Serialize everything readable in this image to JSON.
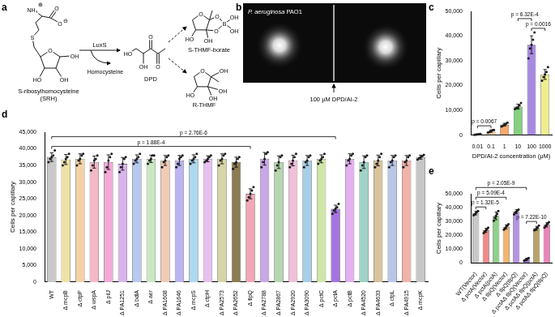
{
  "panel_a": {
    "panel_label": "a",
    "srh": {
      "name": [
        "S-ribosylhomocysteine",
        "(SRH)"
      ],
      "atoms": [
        "O",
        "S",
        "NH₃",
        "⊕",
        "O",
        "O",
        "⊖",
        "OH",
        "HO",
        "OH"
      ]
    },
    "enzyme": "LuxS",
    "byproduct": "Homocysteine",
    "dpd": {
      "name": "DPD",
      "atoms": [
        "HO",
        "OH",
        "O",
        "O"
      ]
    },
    "s_thmf_borate": {
      "name": "S-THMF-borate",
      "atoms": [
        "O",
        "O",
        "B",
        "O",
        "OH",
        "OH",
        "OH",
        "HO"
      ]
    },
    "r_thmf": {
      "name": "R-THMF",
      "atoms": [
        "O",
        "OH",
        "OH",
        "OH",
        "HO"
      ]
    }
  },
  "panel_b": {
    "panel_label": "b",
    "organism": "P. aeruginosa PAO1",
    "annotation": "100 μM DPD/AI-2"
  },
  "chart_data": [
    {
      "panel_label": "c",
      "type": "bar",
      "categories": [
        "0.01",
        "0.1",
        "1",
        "10",
        "100",
        "1000"
      ],
      "values": [
        300,
        1600,
        4200,
        11500,
        36500,
        24500
      ],
      "errors": [
        150,
        450,
        550,
        1000,
        3600,
        2000
      ],
      "points": [
        [
          150,
          200,
          300,
          400,
          450
        ],
        [
          1000,
          1300,
          1600,
          2000,
          2100
        ],
        [
          3500,
          3800,
          4200,
          4500,
          5000
        ],
        [
          10500,
          11000,
          11200,
          12000,
          13000
        ],
        [
          31000,
          35000,
          36500,
          38500,
          41500
        ],
        [
          22000,
          23500,
          24500,
          25500,
          27500
        ]
      ],
      "colors": [
        "#f2f2f2",
        "#f6c89a",
        "#f7a86a",
        "#86d07f",
        "#a68ae0",
        "#eeee90"
      ],
      "x_label": "DPD/AI-2 concentration (μM)",
      "y_label": "Cells per capillary",
      "ylim": [
        0,
        50000
      ],
      "yticks": [
        0,
        {
          "value": 10000,
          "label": "10,000"
        },
        {
          "value": 20000,
          "label": "20,000"
        },
        {
          "value": 30000,
          "label": "30,000"
        },
        {
          "value": 40000,
          "label": "40,000"
        },
        {
          "value": 50000,
          "label": "50,000"
        }
      ],
      "grid": false,
      "comparisons": [
        {
          "between": [
            0,
            1
          ],
          "label": "p = 0.0067"
        },
        {
          "between": [
            4,
            5
          ],
          "label": "p = 0.0016"
        },
        {
          "between": [
            3,
            4
          ],
          "label": "p = 6.32E-4"
        }
      ]
    },
    {
      "panel_label": "d",
      "type": "bar",
      "categories": [
        "WT",
        "Δ mcpB",
        "Δ ctpP",
        "Δ wspA",
        "Δ pilJ",
        "Δ PA1251",
        "Δ bdlA",
        "Δ aer",
        "Δ PA1608",
        "Δ PA1646",
        "Δ mcpS",
        "Δ ctpH",
        "Δ PA2573",
        "Δ PA2652",
        "Δ tlpQ",
        "Δ PA2788",
        "Δ PA2867",
        "Δ PA2920",
        "Δ PA3090",
        "Δ pctC",
        "Δ pctA",
        "Δ pctB",
        "Δ PA4520",
        "Δ PA4633",
        "Δ ctpL",
        "Δ PA4915",
        "Δ mcpK"
      ],
      "values": [
        37500,
        36800,
        37000,
        36000,
        36000,
        35500,
        37000,
        37000,
        36500,
        36500,
        37000,
        37000,
        37000,
        36000,
        26500,
        37000,
        36000,
        36500,
        36500,
        37000,
        22000,
        37000,
        36000,
        36500,
        36500,
        36500,
        37500
      ],
      "errors": [
        1300,
        1500,
        1500,
        1800,
        2200,
        1900,
        1200,
        1100,
        1500,
        1500,
        1200,
        900,
        1500,
        1500,
        1500,
        1900,
        1900,
        1600,
        1500,
        1200,
        1100,
        1500,
        1900,
        1600,
        1500,
        1500,
        600
      ],
      "points": [
        [
          36000,
          37000,
          37500,
          38000,
          39500
        ],
        [
          35000,
          36000,
          37000,
          37500,
          38500
        ],
        [
          35000,
          36500,
          37000,
          38000,
          38500
        ],
        [
          33500,
          35000,
          36500,
          37000,
          38000
        ],
        [
          33000,
          34500,
          36500,
          37500,
          38500
        ],
        [
          33000,
          34500,
          35500,
          37000,
          37500
        ],
        [
          35500,
          36500,
          37000,
          37500,
          38500
        ],
        [
          35500,
          36500,
          37000,
          38000,
          38000
        ],
        [
          34500,
          36000,
          36500,
          37500,
          38000
        ],
        [
          34500,
          35500,
          37000,
          37500,
          38000
        ],
        [
          35500,
          36500,
          37000,
          37500,
          38500
        ],
        [
          36000,
          36500,
          37000,
          37500,
          38000
        ],
        [
          35000,
          36500,
          37000,
          38000,
          38500
        ],
        [
          34000,
          35500,
          36000,
          37000,
          37500
        ],
        [
          24500,
          25500,
          26500,
          27500,
          28500
        ],
        [
          34500,
          36000,
          37000,
          38500,
          39000
        ],
        [
          33500,
          35000,
          36000,
          37500,
          38000
        ],
        [
          34500,
          35500,
          36500,
          37500,
          38500
        ],
        [
          34500,
          36000,
          36500,
          37500,
          38000
        ],
        [
          35500,
          36500,
          37000,
          37500,
          38500
        ],
        [
          20500,
          21500,
          22000,
          22500,
          23500
        ],
        [
          35000,
          36500,
          37000,
          38000,
          38500
        ],
        [
          33500,
          35000,
          36000,
          37500,
          38000
        ],
        [
          34500,
          35500,
          36500,
          37500,
          38500
        ],
        [
          34500,
          36000,
          36500,
          37500,
          38000
        ],
        [
          34500,
          36000,
          36500,
          37500,
          38000
        ],
        [
          36800,
          37200,
          37500,
          37800,
          38200
        ]
      ],
      "colors": [
        "#c8c8c8",
        "#efe2a8",
        "#f3d3a6",
        "#f4b8c6",
        "#f2a9d6",
        "#d7b5ec",
        "#b7c9ef",
        "#cbe7c2",
        "#f1cbb3",
        "#bdb5f0",
        "#add9ef",
        "#e6c1ef",
        "#d5d5a6",
        "#8c7c54",
        "#f3a6b7",
        "#c9a8e6",
        "#b6d6b0",
        "#efc0d8",
        "#a9cfe8",
        "#cfe6a8",
        "#a474e0",
        "#e4b0f0",
        "#9fd3c8",
        "#d8c39c",
        "#b9c7e6",
        "#f0b3a8",
        "#c6c6c6"
      ],
      "y_label": "Cells per capillary",
      "ylim": [
        0,
        45000
      ],
      "yticks": [
        0,
        {
          "value": 5000,
          "label": "5,000"
        },
        {
          "value": 10000,
          "label": "10,000"
        },
        {
          "value": 15000,
          "label": "15,000"
        },
        {
          "value": 20000,
          "label": "20,000"
        },
        {
          "value": 25000,
          "label": "25,000"
        },
        {
          "value": 30000,
          "label": "30,000"
        },
        {
          "value": 35000,
          "label": "35,000"
        },
        {
          "value": 40000,
          "label": "40,000"
        },
        {
          "value": 45000,
          "label": "45,000"
        }
      ],
      "grid": false,
      "comparisons": [
        {
          "between": [
            0,
            14
          ],
          "label": "p = 1.88E-4"
        },
        {
          "between": [
            0,
            20
          ],
          "label": "p = 2.76E-6"
        }
      ]
    },
    {
      "panel_label": "e",
      "type": "bar",
      "categories": [
        "WT(Vector)",
        "Δ pctA(Vector)",
        "Δ pctA(pctA)",
        "Δ tlpQ(Vector)",
        "Δ tlpQ(tlpQ)",
        "Δ pctAΔ tlpQ(Vector)",
        "Δ pctAΔ tlpQ(pctA)",
        "Δ pctAΔ tlpQ(tlpQ)"
      ],
      "values": [
        36000,
        23500,
        34000,
        26000,
        37000,
        2500,
        25000,
        27500
      ],
      "errors": [
        1300,
        1500,
        2800,
        1500,
        1500,
        800,
        1400,
        1500
      ],
      "points": [
        [
          34500,
          35000,
          36000,
          37000,
          37500
        ],
        [
          21500,
          22500,
          23500,
          24500,
          25500
        ],
        [
          30500,
          32500,
          34000,
          35500,
          37500
        ],
        [
          24000,
          25000,
          26000,
          27000,
          28000
        ],
        [
          35000,
          36500,
          37000,
          38000,
          38500
        ],
        [
          1500,
          2000,
          2500,
          3000,
          3500
        ],
        [
          23500,
          24000,
          25000,
          25500,
          27000
        ],
        [
          25500,
          26500,
          27500,
          28500,
          29500
        ]
      ],
      "colors": [
        "#c8c8c8",
        "#f08a8a",
        "#8fd08a",
        "#f4b46e",
        "#b493e2",
        "#9a6fd6",
        "#b9a36a",
        "#ea86b8"
      ],
      "y_label": "Cells per capillary",
      "ylim": [
        0,
        50000
      ],
      "yticks": [
        0,
        {
          "value": 10000,
          "label": "10,000"
        },
        {
          "value": 20000,
          "label": "20,000"
        },
        {
          "value": 30000,
          "label": "30,000"
        },
        {
          "value": 40000,
          "label": "40,000"
        },
        {
          "value": 50000,
          "label": "50,000"
        }
      ],
      "grid": false,
      "comparisons": [
        {
          "between": [
            0,
            1
          ],
          "label": "p = 1.32E-5"
        },
        {
          "between": [
            5,
            6
          ],
          "label": "p = 7.22E-10"
        },
        {
          "between": [
            0,
            3
          ],
          "label": "p = 5.09E-4"
        },
        {
          "between": [
            0,
            5
          ],
          "label": "p = 2.05E-9"
        }
      ]
    }
  ]
}
